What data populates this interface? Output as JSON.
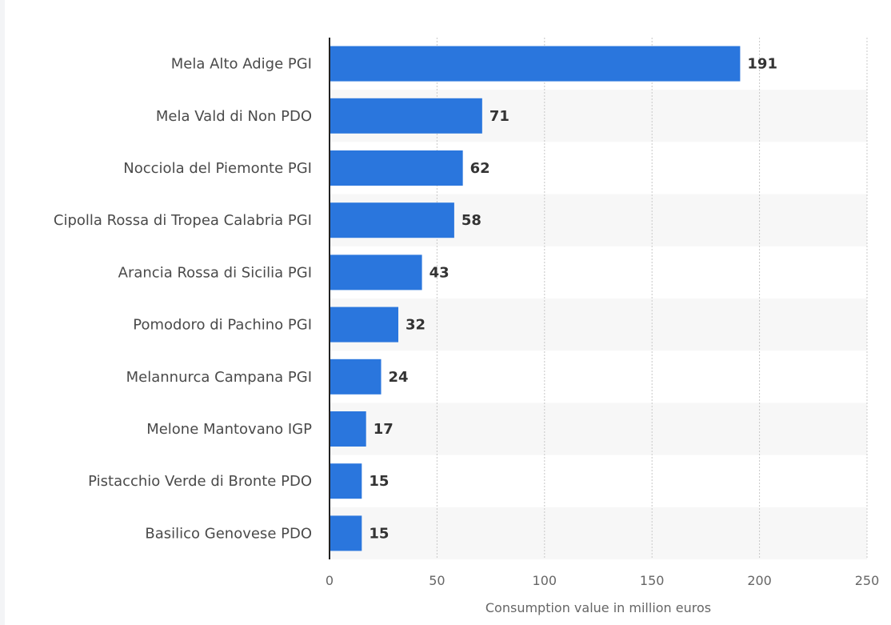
{
  "chart_data": {
    "type": "bar",
    "orientation": "horizontal",
    "categories": [
      "Mela Alto Adige PGI",
      "Mela Vald di Non PDO",
      "Nocciola del Piemonte PGI",
      "Cipolla Rossa di Tropea Calabria PGI",
      "Arancia Rossa di Sicilia PGI",
      "Pomodoro di Pachino PGI",
      "Melannurca Campana PGI",
      "Melone Mantovano IGP",
      "Pistacchio Verde di Bronte PDO",
      "Basilico Genovese PDO"
    ],
    "values": [
      191,
      71,
      62,
      58,
      43,
      32,
      24,
      17,
      15,
      15
    ],
    "xlabel": "Consumption value in million euros",
    "ylabel": "",
    "xlim": [
      0,
      250
    ],
    "xticks": [
      0,
      50,
      100,
      150,
      200,
      250
    ],
    "grid": true,
    "bar_color": "#2a76dd",
    "band_color": "#f7f7f7"
  }
}
